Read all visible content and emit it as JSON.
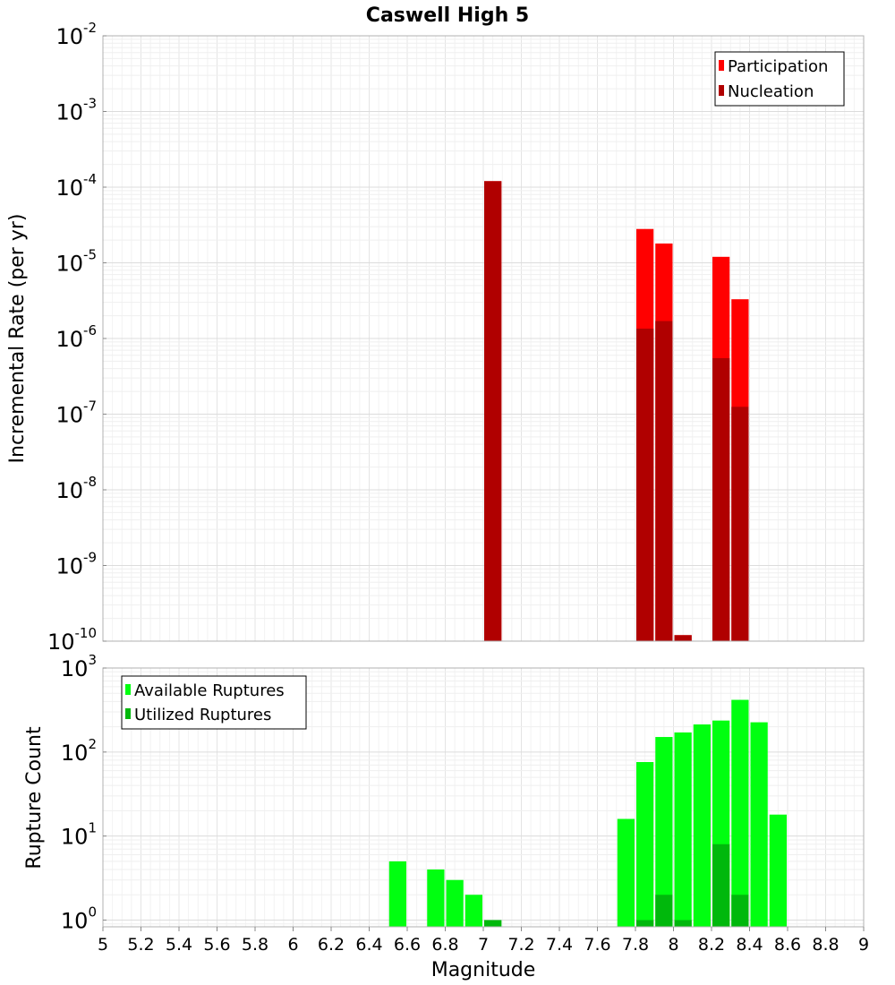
{
  "chart_data": {
    "type": "bar",
    "title": "Caswell High 5",
    "xlabel": "Magnitude",
    "xlim": [
      5,
      9
    ],
    "bin_width": 0.1,
    "x_ticks": [
      "5",
      "5.2",
      "5.4",
      "5.6",
      "5.8",
      "6",
      "6.2",
      "6.4",
      "6.6",
      "6.8",
      "7",
      "7.2",
      "7.4",
      "7.6",
      "7.8",
      "8",
      "8.2",
      "8.4",
      "8.6",
      "8.8",
      "9"
    ],
    "grid": true,
    "panels": [
      {
        "id": "rate",
        "ylabel": "Incremental Rate (per yr)",
        "yscale": "log",
        "ylim_exponents": [
          -10,
          -2
        ],
        "y_tick_base": "10",
        "y_tick_exponents": [
          "-10",
          "-9",
          "-8",
          "-7",
          "-6",
          "-5",
          "-4",
          "-3",
          "-2"
        ],
        "legend": {
          "position": "top-right",
          "entries": [
            "Participation",
            "Nucleation"
          ]
        },
        "series": [
          {
            "name": "Participation",
            "color": "#ff0000",
            "x": [
              7.05,
              7.85,
              7.95,
              8.05,
              8.25,
              8.35
            ],
            "values": [
              0.00012,
              2.8e-05,
              1.8e-05,
              1.2e-10,
              1.2e-05,
              3.3e-06
            ]
          },
          {
            "name": "Nucleation",
            "color": "#b00000",
            "x": [
              7.05,
              7.85,
              7.95,
              8.05,
              8.25,
              8.35
            ],
            "values": [
              0.00012,
              1.35e-06,
              1.7e-06,
              1.2e-10,
              5.5e-07,
              1.25e-07
            ]
          }
        ]
      },
      {
        "id": "count",
        "ylabel": "Rupture Count",
        "yscale": "log",
        "ylim_exponents": [
          -0.08,
          3
        ],
        "y_tick_base": "10",
        "y_tick_exponents": [
          "0",
          "1",
          "2",
          "3"
        ],
        "legend": {
          "position": "top-left",
          "entries": [
            "Available Ruptures",
            "Utilized Ruptures"
          ]
        },
        "series": [
          {
            "name": "Available Ruptures",
            "color": "#00ff10",
            "x": [
              6.55,
              6.75,
              6.85,
              6.95,
              7.05,
              7.75,
              7.85,
              7.95,
              8.05,
              8.15,
              8.25,
              8.35,
              8.45,
              8.55
            ],
            "values": [
              5,
              4,
              3,
              2,
              1,
              16,
              76,
              151,
              171,
              213,
              237,
              418,
              226,
              18
            ]
          },
          {
            "name": "Utilized Ruptures",
            "color": "#00b80c",
            "x": [
              7.05,
              7.85,
              7.95,
              8.05,
              8.25,
              8.35
            ],
            "values": [
              1,
              1,
              2,
              1,
              8,
              2
            ]
          }
        ]
      }
    ]
  }
}
